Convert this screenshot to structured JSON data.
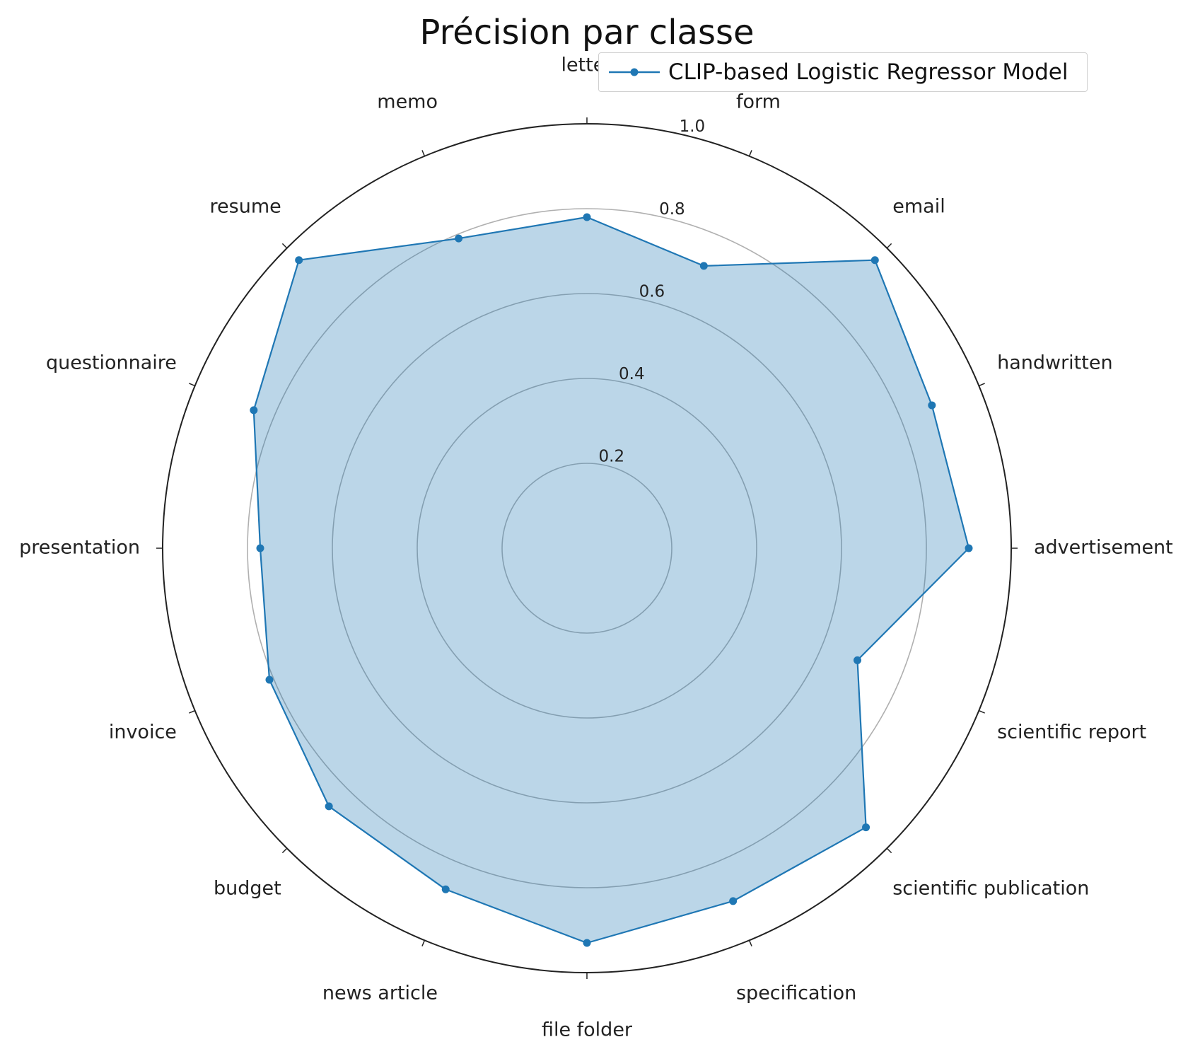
{
  "chart_data": {
    "type": "radar",
    "title": "Précision par classe",
    "categories": [
      "letter",
      "form",
      "email",
      "handwritten",
      "advertisement",
      "scientific report",
      "scientific publication",
      "specification",
      "file folder",
      "news article",
      "budget",
      "invoice",
      "presentation",
      "questionnaire",
      "resume",
      "memo"
    ],
    "series": [
      {
        "name": "CLIP-based Logistic Regressor Model",
        "color": "#1f77b4",
        "fill": "#1f77b4",
        "fill_opacity": 0.3,
        "values": [
          0.78,
          0.72,
          0.96,
          0.88,
          0.9,
          0.69,
          0.93,
          0.9,
          0.93,
          0.87,
          0.86,
          0.81,
          0.77,
          0.85,
          0.96,
          0.79
        ]
      }
    ],
    "rlim": [
      0,
      1.0
    ],
    "radial_ticks": [
      0.2,
      0.4,
      0.6,
      0.8,
      1.0
    ],
    "radial_tick_labels": [
      "0.2",
      "0.4",
      "0.6",
      "0.8",
      "1.0"
    ],
    "grid": true,
    "legend_position": "top-right"
  }
}
